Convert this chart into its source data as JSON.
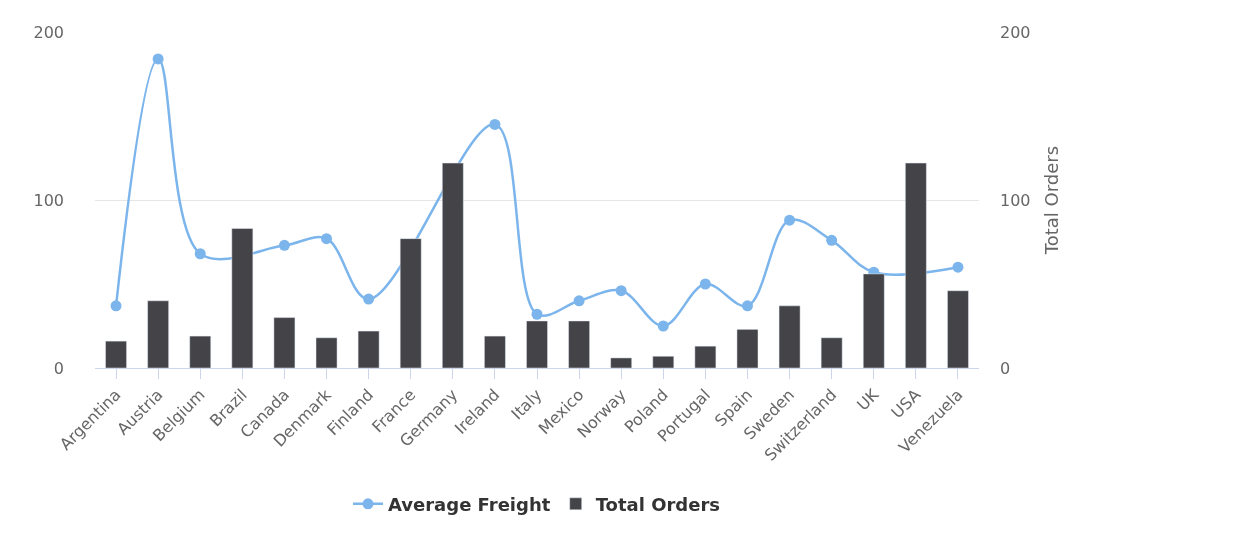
{
  "chart_data": {
    "type": "bar",
    "y2label": "Total Orders",
    "categories": [
      "Argentina",
      "Austria",
      "Belgium",
      "Brazil",
      "Canada",
      "Denmark",
      "Finland",
      "France",
      "Germany",
      "Ireland",
      "Italy",
      "Mexico",
      "Norway",
      "Poland",
      "Portugal",
      "Spain",
      "Sweden",
      "Switzerland",
      "UK",
      "USA",
      "Venezuela"
    ],
    "series": [
      {
        "name": "Average Freight",
        "type": "line",
        "color": "#7cb5ec",
        "marker": "circle",
        "values": [
          37,
          184,
          68,
          null,
          73,
          77,
          41,
          null,
          null,
          145,
          32,
          40,
          46,
          25,
          50,
          37,
          88,
          76,
          57,
          null,
          60
        ]
      },
      {
        "name": "Total Orders",
        "axis": "y2",
        "color": "#434348",
        "values": [
          16,
          40,
          19,
          83,
          30,
          18,
          22,
          77,
          122,
          19,
          28,
          28,
          6,
          7,
          13,
          23,
          37,
          18,
          56,
          122,
          46
        ]
      }
    ],
    "ylim": [
      0,
      200
    ],
    "yticks": [
      0,
      100,
      200
    ],
    "y2lim": [
      0,
      200
    ],
    "y2ticks": [
      0,
      100,
      200
    ],
    "grid": "y",
    "legend": "bottom"
  }
}
